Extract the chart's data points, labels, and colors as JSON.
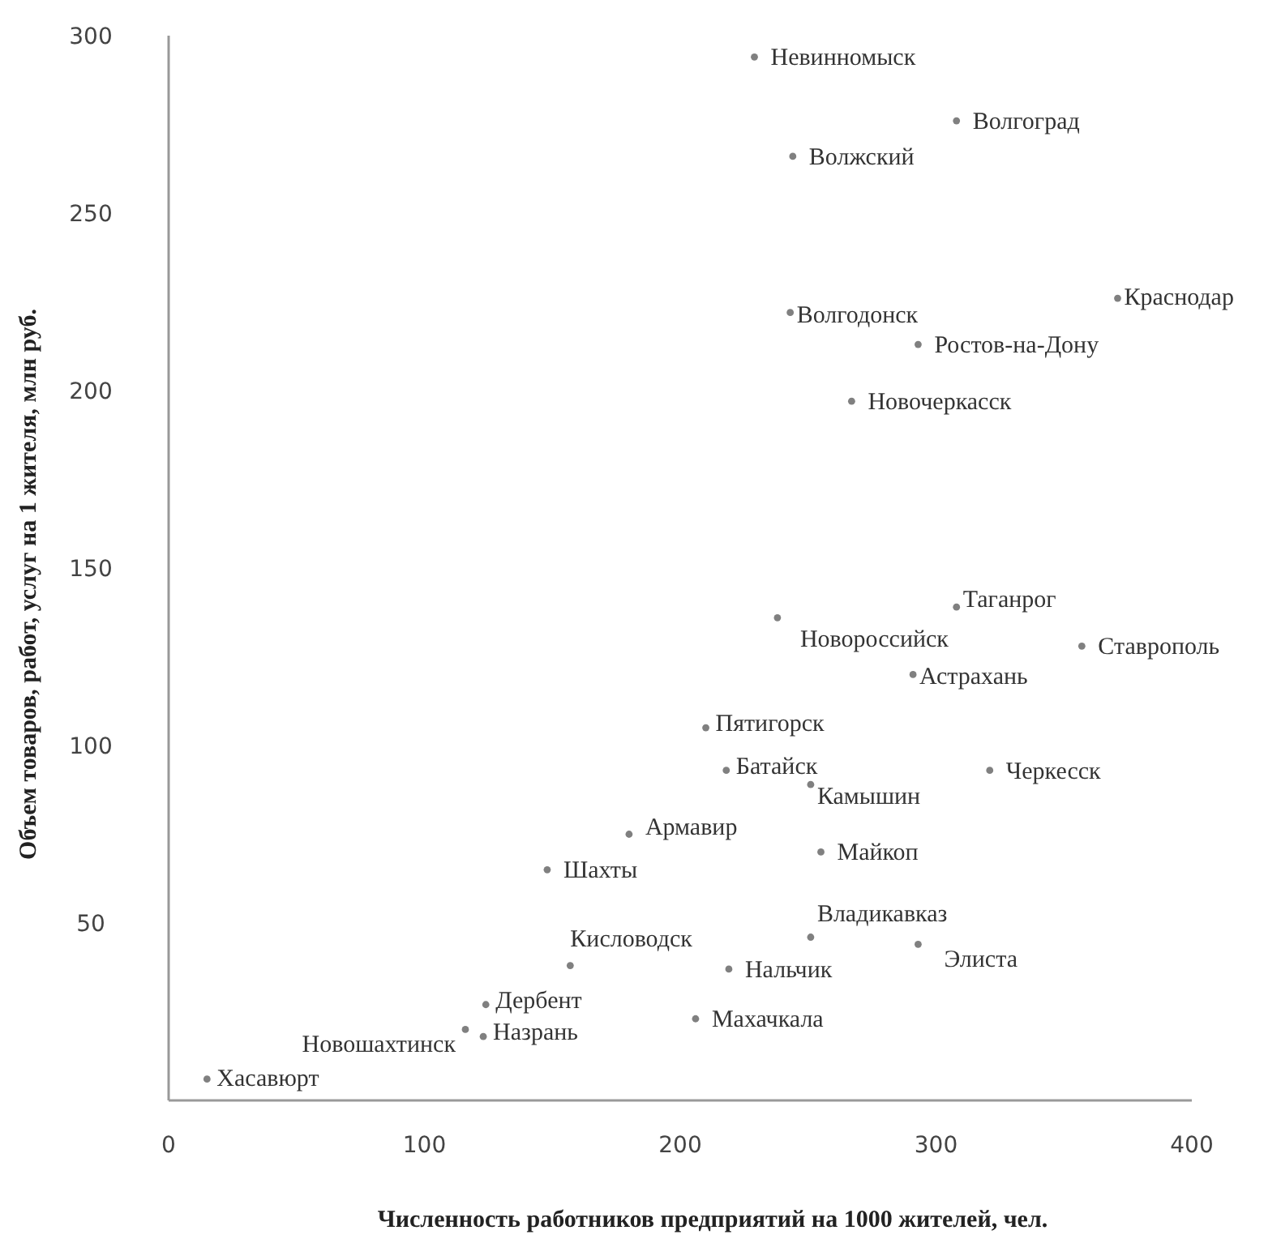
{
  "chart_data": {
    "type": "scatter",
    "xlabel": "Численность работников предприятий  на 1000 жителей, чел.",
    "ylabel": "Объем товаров, работ, услуг на 1 жителя, млн руб.",
    "xlim": [
      0,
      400
    ],
    "xticks": [
      0,
      100,
      200,
      300,
      400
    ],
    "ylim": [
      0,
      300
    ],
    "yticks": [
      50,
      100,
      150,
      200,
      250,
      300
    ],
    "grid": false,
    "marker": "circle",
    "series": [
      {
        "color": "#808080",
        "x": [
          229,
          308,
          244,
          243,
          371,
          293,
          267,
          308,
          238,
          357,
          291,
          210,
          218,
          321,
          251,
          255,
          251,
          293,
          219,
          206,
          180,
          148,
          157,
          124,
          116,
          123,
          15
        ],
        "values": [
          294,
          276,
          266,
          222,
          226,
          213,
          197,
          139,
          136,
          128,
          120,
          105,
          93,
          93,
          89,
          70,
          46,
          44,
          37,
          23,
          75,
          65,
          38,
          27,
          20,
          18,
          6
        ]
      }
    ],
    "annotations": [
      {
        "text": "Невинномыск",
        "x": 229,
        "y": 294
      },
      {
        "text": "Волгоград",
        "x": 308,
        "y": 276
      },
      {
        "text": "Волжский",
        "x": 244,
        "y": 266
      },
      {
        "text": "Волгодонск",
        "x": 243,
        "y": 222
      },
      {
        "text": "Краснодар",
        "x": 371,
        "y": 226
      },
      {
        "text": "Ростов-на-Дону",
        "x": 293,
        "y": 213
      },
      {
        "text": "Новочеркасск",
        "x": 267,
        "y": 197
      },
      {
        "text": "Таганрог",
        "x": 308,
        "y": 139
      },
      {
        "text": "Новороссийск",
        "x": 238,
        "y": 136
      },
      {
        "text": "Ставрополь",
        "x": 357,
        "y": 128
      },
      {
        "text": "Астрахань",
        "x": 291,
        "y": 120
      },
      {
        "text": "Пятигорск",
        "x": 210,
        "y": 105
      },
      {
        "text": "Батайск",
        "x": 218,
        "y": 93
      },
      {
        "text": "Черкесск",
        "x": 321,
        "y": 93
      },
      {
        "text": "Камышин",
        "x": 251,
        "y": 89
      },
      {
        "text": "Майкоп",
        "x": 255,
        "y": 70
      },
      {
        "text": "Владикавказ",
        "x": 251,
        "y": 46
      },
      {
        "text": "Элиста",
        "x": 293,
        "y": 44
      },
      {
        "text": "Нальчик",
        "x": 219,
        "y": 37
      },
      {
        "text": "Махачкала",
        "x": 206,
        "y": 23
      },
      {
        "text": "Армавир",
        "x": 180,
        "y": 75
      },
      {
        "text": "Шахты",
        "x": 148,
        "y": 65
      },
      {
        "text": "Кисловодск",
        "x": 157,
        "y": 38
      },
      {
        "text": "Дербент",
        "x": 124,
        "y": 27
      },
      {
        "text": "Новошахтинск",
        "x": 116,
        "y": 20
      },
      {
        "text": "Назрань",
        "x": 123,
        "y": 18
      },
      {
        "text": "Хасавюрт",
        "x": 15,
        "y": 6
      }
    ]
  }
}
